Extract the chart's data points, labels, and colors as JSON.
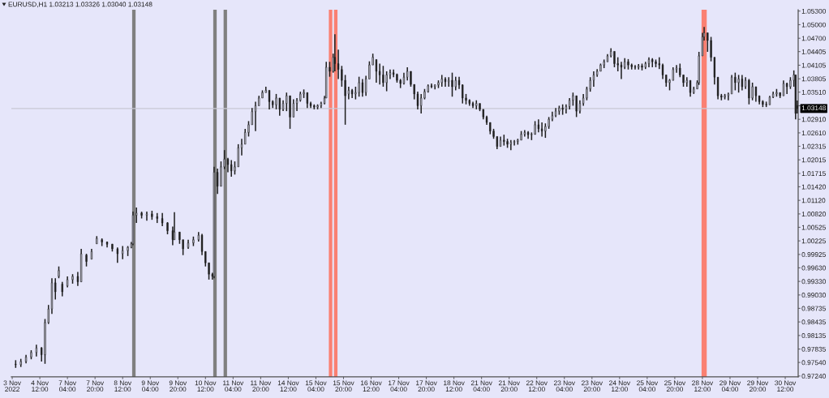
{
  "chart_data": {
    "type": "candlestick",
    "title": "EURUSD,H1 1.03213 1.03326 1.03040 1.03148",
    "color": "#202020",
    "categories": [
      "3 Nov 2022",
      null,
      null,
      null,
      null,
      null,
      null,
      null,
      null,
      null,
      null,
      null,
      null,
      null,
      null,
      null,
      "4 Nov 12:00",
      null,
      null,
      null,
      null,
      null,
      null,
      null,
      null,
      null,
      null,
      null,
      null,
      null,
      null,
      null,
      "7 Nov 04:00",
      null,
      null,
      null,
      null,
      null,
      null,
      null,
      null,
      null,
      null,
      null,
      null,
      null,
      null,
      null,
      "7 Nov 20:00",
      null,
      null,
      null,
      null,
      null,
      null,
      null,
      null,
      null,
      null,
      null,
      null,
      null,
      null,
      null,
      "8 Nov 12:00",
      null,
      null,
      null,
      null,
      null,
      null,
      null,
      null,
      null,
      null,
      null,
      null,
      null,
      null,
      null,
      "9 Nov 04:00",
      null,
      null,
      null,
      null,
      null,
      null,
      null,
      null,
      null,
      null,
      null,
      null,
      null,
      null,
      null,
      "9 Nov 20:00",
      null,
      null,
      null,
      null,
      null,
      null,
      null,
      null,
      null,
      null,
      null,
      null,
      null,
      null,
      null,
      "10 Nov 12:00",
      null,
      null,
      null,
      null,
      null,
      null,
      null,
      null,
      null,
      null,
      null,
      null,
      null,
      null,
      null,
      "11 Nov 04:00",
      null,
      null,
      null,
      null,
      null,
      null,
      null,
      null,
      null,
      null,
      null,
      null,
      null,
      null,
      null,
      "11 Nov 20:00",
      null,
      null,
      null,
      null,
      null,
      null,
      null,
      null,
      null,
      null,
      null,
      null,
      null,
      null,
      null,
      "14 Nov 12:00",
      null,
      null,
      null,
      null,
      null,
      null,
      null,
      null,
      null,
      null,
      null,
      null,
      null,
      null,
      null,
      "15 Nov 04:00",
      null,
      null,
      null,
      null,
      null,
      null,
      null,
      null,
      null,
      null,
      null,
      null,
      null,
      null,
      null,
      "15 Nov 20:00",
      null,
      null,
      null,
      null,
      null,
      null,
      null,
      null,
      null,
      null,
      null,
      null,
      null,
      null,
      null,
      "16 Nov 12:00",
      null,
      null,
      null,
      null,
      null,
      null,
      null,
      null,
      null,
      null,
      null,
      null,
      null,
      null,
      null,
      "17 Nov 04:00",
      null,
      null,
      null,
      null,
      null,
      null,
      null,
      null,
      null,
      null,
      null,
      null,
      null,
      null,
      null,
      "17 Nov 20:00",
      null,
      null,
      null,
      null,
      null,
      null,
      null,
      null,
      null,
      null,
      null,
      null,
      null,
      null,
      null,
      "18 Nov 12:00",
      null,
      null,
      null,
      null,
      null,
      null,
      null,
      null,
      null,
      null,
      null,
      null,
      null,
      null,
      null,
      "21 Nov 04:00",
      null,
      null,
      null,
      null,
      null,
      null,
      null,
      null,
      null,
      null,
      null,
      null,
      null,
      null,
      null,
      "21 Nov 20:00",
      null,
      null,
      null,
      null,
      null,
      null,
      null,
      null,
      null,
      null,
      null,
      null,
      null,
      null,
      null,
      "22 Nov 12:00",
      null,
      null,
      null,
      null,
      null,
      null,
      null,
      null,
      null,
      null,
      null,
      null,
      null,
      null,
      null,
      "23 Nov 04:00",
      null,
      null,
      null,
      null,
      null,
      null,
      null,
      null,
      null,
      null,
      null,
      null,
      null,
      null,
      null,
      "23 Nov 20:00",
      null,
      null,
      null,
      null,
      null,
      null,
      null,
      null,
      null,
      null,
      null,
      null,
      null,
      null,
      null,
      "24 Nov 12:00",
      null,
      null,
      null,
      null,
      null,
      null,
      null,
      null,
      null,
      null,
      null,
      null,
      null,
      null,
      null,
      "25 Nov 04:00",
      null,
      null,
      null,
      null,
      null,
      null,
      null,
      null,
      null,
      null,
      null,
      null,
      null,
      null,
      null,
      "25 Nov 20:00",
      null,
      null,
      null,
      null,
      null,
      null,
      null,
      null,
      null,
      null,
      null,
      null,
      null,
      null,
      null,
      "28 Nov 12:00",
      null,
      null,
      null,
      null,
      null,
      null,
      null,
      null,
      null,
      null,
      null,
      null,
      null,
      null,
      null,
      "29 Nov 04:00",
      null,
      null,
      null,
      null,
      null,
      null,
      null,
      null,
      null,
      null,
      null,
      null,
      null,
      null,
      null,
      "29 Nov 20:00",
      null,
      null,
      null,
      null,
      null,
      null,
      null,
      null,
      null,
      null,
      null,
      null,
      null,
      null,
      null,
      "30 Nov 12:00",
      null,
      null,
      null,
      null,
      null,
      null,
      null
    ],
    "ohlc": [
      null,
      null,
      [
        0.975,
        0.9759,
        0.9742,
        0.9749
      ],
      null,
      null,
      [
        0.9749,
        0.9762,
        0.9744,
        0.9756
      ],
      null,
      null,
      [
        0.9756,
        0.9771,
        0.9752,
        0.9766
      ],
      null,
      null,
      [
        0.9766,
        0.9781,
        0.9761,
        0.9776
      ],
      null,
      null,
      [
        0.9776,
        0.9793,
        0.9767,
        0.9786
      ],
      null,
      null,
      [
        0.9786,
        0.9788,
        0.9756,
        0.9771
      ],
      null,
      [
        0.9771,
        0.985,
        0.9751,
        0.9842
      ],
      null,
      [
        0.9842,
        0.9881,
        0.9839,
        0.9872
      ],
      null,
      [
        0.9872,
        0.994,
        0.9861,
        0.993
      ],
      null,
      [
        0.993,
        0.994,
        0.9893,
        0.991
      ],
      null,
      [
        0.9944,
        0.9966,
        0.994,
        0.9957
      ],
      null,
      [
        0.9927,
        0.9932,
        0.99,
        0.991
      ],
      null,
      null,
      [
        0.9923,
        0.9944,
        0.992,
        0.9937
      ],
      null,
      null,
      [
        0.9937,
        0.9949,
        0.9928,
        0.9944
      ],
      null,
      null,
      [
        0.9944,
        0.9954,
        0.9923,
        0.9932
      ],
      null,
      [
        0.9932,
        1.0005,
        0.9932,
        0.9994
      ],
      null,
      null,
      [
        0.9991,
        0.9994,
        0.9966,
        0.9977
      ],
      null,
      null,
      [
        0.9982,
        1.0005,
        0.9982,
        0.9999
      ],
      null,
      null,
      [
        1.0016,
        1.0033,
        1.0016,
        1.0028
      ],
      null,
      null,
      [
        1.0025,
        1.0028,
        1.0011,
        1.002
      ],
      null,
      null,
      [
        1.002,
        1.0021,
        1.0008,
        1.0015
      ],
      null,
      null,
      [
        1.0015,
        1.0016,
        0.9999,
        1.0005
      ],
      null,
      null,
      [
        1.0005,
        1.0008,
        0.9974,
        0.9994
      ],
      null,
      null,
      [
        0.9994,
        1.0011,
        0.9982,
        1.0001
      ],
      null,
      null,
      [
        1.0001,
        1.0011,
        0.9989,
        1.0008
      ],
      null,
      [
        1.0008,
        1.002,
        1.0006,
        1.0016
      ],
      [
        1.0016,
        1.0087,
        1.0013,
        1.0079
      ],
      null,
      [
        1.0079,
        1.0096,
        1.0062,
        1.0084
      ],
      null,
      null,
      [
        1.0084,
        1.0087,
        1.0072,
        1.0079
      ],
      null,
      null,
      [
        1.0079,
        1.0087,
        1.0067,
        1.0082
      ],
      null,
      null,
      [
        1.0082,
        1.0089,
        1.0069,
        1.0076
      ],
      null,
      null,
      [
        1.0076,
        1.0084,
        1.0062,
        1.0072
      ],
      null,
      null,
      [
        1.0072,
        1.0084,
        1.0055,
        1.0062
      ],
      null,
      null,
      [
        1.0062,
        1.0064,
        1.0037,
        1.0045
      ],
      null,
      null,
      [
        1.0045,
        1.0054,
        1.0013,
        1.0025
      ],
      [
        1.0025,
        1.0086,
        1.0025,
        1.0042
      ],
      null,
      null,
      [
        1.0042,
        1.0042,
        1.0016,
        1.0025
      ],
      null,
      [
        1.0025,
        1.0025,
        0.9991,
        1.0005
      ],
      null,
      null,
      [
        1.0008,
        1.0025,
        1.0005,
        1.0018
      ],
      null,
      null,
      [
        1.0018,
        1.0032,
        1.0011,
        1.0025
      ],
      null,
      null,
      [
        1.0025,
        1.0042,
        1.0021,
        1.0035
      ],
      null,
      [
        1.0035,
        1.0038,
        0.9991,
        0.9999
      ],
      null,
      [
        0.9999,
        0.9999,
        0.9966,
        0.9974
      ],
      null,
      [
        0.9974,
        0.9974,
        0.9937,
        0.9949
      ],
      null,
      [
        0.9949,
        0.9952,
        0.9937,
        0.9944
      ],
      [
        0.9944,
        1.0186,
        0.994,
        1.0174
      ],
      null,
      [
        1.0174,
        1.0182,
        1.0126,
        1.0143
      ],
      null,
      [
        1.0143,
        1.0198,
        1.0143,
        1.0186
      ],
      null,
      [
        1.0186,
        1.0223,
        1.0181,
        1.0203
      ],
      null,
      [
        1.0203,
        1.0206,
        1.0174,
        1.0191
      ],
      null,
      [
        1.0191,
        1.0201,
        1.0164,
        1.0177
      ],
      null,
      [
        1.0177,
        1.0198,
        1.0169,
        1.0186
      ],
      null,
      [
        1.0186,
        1.0236,
        1.0186,
        1.0228
      ],
      null,
      [
        1.0228,
        1.0248,
        1.0211,
        1.0236
      ],
      null,
      [
        1.0236,
        1.027,
        1.0236,
        1.0262
      ],
      null,
      [
        1.0262,
        1.0287,
        1.0253,
        1.0279
      ],
      null,
      [
        1.0279,
        1.0316,
        1.0279,
        1.0308
      ],
      null,
      [
        1.0308,
        1.033,
        1.0265,
        1.0321
      ],
      null,
      [
        1.0321,
        1.0343,
        1.0321,
        1.0338
      ],
      null,
      [
        1.0338,
        1.0355,
        1.0338,
        1.035
      ],
      null,
      [
        1.035,
        1.0363,
        1.035,
        1.0355
      ],
      null,
      [
        1.0355,
        1.0355,
        1.0313,
        1.033
      ],
      null,
      [
        1.033,
        1.0333,
        1.0316,
        1.0323
      ],
      null,
      [
        1.0323,
        1.0347,
        1.0313,
        1.0338
      ],
      null,
      [
        1.0338,
        1.0338,
        1.0299,
        1.0313
      ],
      null,
      [
        1.0313,
        1.0333,
        1.0309,
        1.0326
      ],
      null,
      [
        1.0326,
        1.035,
        1.0309,
        1.0343
      ],
      null,
      [
        1.0343,
        1.0343,
        1.027,
        1.0296
      ],
      null,
      [
        1.0296,
        1.0335,
        1.0296,
        1.0326
      ],
      null,
      [
        1.0326,
        1.0338,
        1.0309,
        1.0333
      ],
      null,
      [
        1.0333,
        1.0352,
        1.033,
        1.0347
      ],
      null,
      [
        1.0347,
        1.0357,
        1.0338,
        1.035
      ],
      null,
      [
        1.035,
        1.035,
        1.0316,
        1.0326
      ],
      null,
      [
        1.0326,
        1.033,
        1.0316,
        1.0321
      ],
      null,
      [
        1.0321,
        1.0324,
        1.0313,
        1.0318
      ],
      null,
      [
        1.0318,
        1.0324,
        1.0313,
        1.0321
      ],
      null,
      [
        1.0321,
        1.033,
        1.0316,
        1.0326
      ],
      null,
      [
        1.0326,
        1.0343,
        1.0324,
        1.0338
      ],
      [
        1.0338,
        1.0418,
        1.0338,
        1.0406
      ],
      null,
      [
        1.0406,
        1.0418,
        1.0385,
        1.0397
      ],
      null,
      [
        1.0397,
        1.0436,
        1.0394,
        1.0428
      ],
      [
        1.0428,
        1.0479,
        1.0397,
        1.0414
      ],
      null,
      [
        1.0414,
        1.0445,
        1.038,
        1.0401
      ],
      null,
      [
        1.0401,
        1.0409,
        1.0363,
        1.0377
      ],
      null,
      [
        1.0377,
        1.0389,
        1.0279,
        1.0343
      ],
      null,
      [
        1.0347,
        1.0363,
        1.0335,
        1.0355
      ],
      null,
      [
        1.0355,
        1.0358,
        1.0338,
        1.0347
      ],
      null,
      [
        1.0347,
        1.0363,
        1.0335,
        1.035
      ],
      null,
      [
        1.035,
        1.0385,
        1.0341,
        1.0372
      ],
      null,
      [
        1.0372,
        1.038,
        1.0341,
        1.035
      ],
      null,
      [
        1.035,
        1.0387,
        1.0343,
        1.038
      ],
      null,
      [
        1.038,
        1.0419,
        1.038,
        1.0411
      ],
      null,
      [
        1.0411,
        1.0436,
        1.0411,
        1.0428
      ],
      null,
      [
        1.0423,
        1.0423,
        1.0372,
        1.0397
      ],
      null,
      [
        1.0397,
        1.0414,
        1.0368,
        1.0389
      ],
      null,
      [
        1.0389,
        1.0409,
        1.0363,
        1.0372
      ],
      null,
      [
        1.0372,
        1.0397,
        1.0353,
        1.0389
      ],
      null,
      [
        1.0389,
        1.0401,
        1.038,
        1.0394
      ],
      null,
      [
        1.0394,
        1.0401,
        1.0384,
        1.039
      ],
      null,
      [
        1.039,
        1.0392,
        1.0372,
        1.0377
      ],
      null,
      [
        1.0377,
        1.038,
        1.036,
        1.037
      ],
      null,
      [
        1.037,
        1.0394,
        1.0368,
        1.0384
      ],
      null,
      [
        1.0384,
        1.0406,
        1.0377,
        1.0397
      ],
      null,
      [
        1.0397,
        1.0397,
        1.0363,
        1.0368
      ],
      null,
      [
        1.0368,
        1.0368,
        1.0335,
        1.0347
      ],
      null,
      [
        1.0347,
        1.0352,
        1.0313,
        1.0321
      ],
      null,
      [
        1.0321,
        1.0347,
        1.0304,
        1.0338
      ],
      null,
      [
        1.0338,
        1.0358,
        1.0335,
        1.0352
      ],
      null,
      [
        1.0352,
        1.0368,
        1.035,
        1.0365
      ],
      null,
      [
        1.0365,
        1.037,
        1.036,
        1.0363
      ],
      null,
      [
        1.0363,
        1.0368,
        1.0357,
        1.0367
      ],
      null,
      [
        1.0367,
        1.0377,
        1.036,
        1.0372
      ],
      null,
      [
        1.0372,
        1.0389,
        1.0363,
        1.038
      ],
      null,
      [
        1.038,
        1.0384,
        1.0363,
        1.0374
      ],
      null,
      [
        1.0374,
        1.0384,
        1.0363,
        1.0377
      ],
      null,
      [
        1.0377,
        1.0394,
        1.0341,
        1.0363
      ],
      null,
      [
        1.0363,
        1.0385,
        1.0355,
        1.0377
      ],
      null,
      [
        1.0377,
        1.0385,
        1.0358,
        1.0367
      ],
      null,
      [
        1.0367,
        1.0368,
        1.0326,
        1.0338
      ],
      null,
      [
        1.0338,
        1.0347,
        1.0324,
        1.0333
      ],
      null,
      [
        1.0333,
        1.0335,
        1.0321,
        1.0326
      ],
      null,
      [
        1.0326,
        1.033,
        1.0316,
        1.0321
      ],
      null,
      [
        1.0321,
        1.0333,
        1.0313,
        1.0326
      ],
      null,
      [
        1.0326,
        1.0326,
        1.0309,
        1.0313
      ],
      null,
      [
        1.0313,
        1.0313,
        1.0291,
        1.0296
      ],
      null,
      [
        1.0296,
        1.0299,
        1.0279,
        1.0284
      ],
      null,
      [
        1.0284,
        1.0284,
        1.0258,
        1.0265
      ],
      null,
      [
        1.0265,
        1.027,
        1.0248,
        1.0253
      ],
      null,
      [
        1.0253,
        1.0253,
        1.0225,
        1.0231
      ],
      null,
      [
        1.0231,
        1.0253,
        1.0231,
        1.0245
      ],
      null,
      [
        1.0245,
        1.0257,
        1.0233,
        1.0242
      ],
      null,
      [
        1.0242,
        1.0248,
        1.0228,
        1.0236
      ],
      null,
      [
        1.0236,
        1.0245,
        1.0223,
        1.024
      ],
      null,
      [
        1.024,
        1.0245,
        1.0233,
        1.0242
      ],
      null,
      [
        1.0242,
        1.0248,
        1.0235,
        1.0245
      ],
      null,
      [
        1.0245,
        1.0265,
        1.0245,
        1.0258
      ],
      null,
      [
        1.0258,
        1.0267,
        1.0253,
        1.0262
      ],
      null,
      [
        1.0262,
        1.0265,
        1.0248,
        1.0257
      ],
      null,
      [
        1.0257,
        1.0262,
        1.0245,
        1.0258
      ],
      null,
      [
        1.0258,
        1.0287,
        1.0257,
        1.0279
      ],
      null,
      [
        1.0279,
        1.0291,
        1.0262,
        1.027
      ],
      null,
      [
        1.027,
        1.0284,
        1.0253,
        1.0265
      ],
      null,
      [
        1.0265,
        1.0282,
        1.025,
        1.0275
      ],
      null,
      [
        1.0275,
        1.0296,
        1.027,
        1.0291
      ],
      null,
      [
        1.0291,
        1.0308,
        1.0287,
        1.0299
      ],
      null,
      [
        1.0299,
        1.0316,
        1.0296,
        1.0309
      ],
      null,
      [
        1.0309,
        1.0321,
        1.0301,
        1.0316
      ],
      null,
      [
        1.0316,
        1.0324,
        1.0301,
        1.0313
      ],
      null,
      [
        1.0313,
        1.0324,
        1.0304,
        1.0319
      ],
      null,
      [
        1.0319,
        1.0338,
        1.0313,
        1.0333
      ],
      null,
      [
        1.0333,
        1.035,
        1.0321,
        1.0343
      ],
      null,
      [
        1.0343,
        1.0343,
        1.0296,
        1.0309
      ],
      null,
      [
        1.0309,
        1.0333,
        1.0304,
        1.0326
      ],
      null,
      [
        1.0326,
        1.0347,
        1.0321,
        1.0338
      ],
      null,
      [
        1.0338,
        1.0363,
        1.0333,
        1.0358
      ],
      null,
      [
        1.0358,
        1.0384,
        1.0352,
        1.0377
      ],
      null,
      [
        1.0377,
        1.0397,
        1.0363,
        1.0389
      ],
      null,
      [
        1.0389,
        1.0402,
        1.0385,
        1.0397
      ],
      null,
      [
        1.0397,
        1.0414,
        1.0397,
        1.0411
      ],
      null,
      [
        1.0411,
        1.0423,
        1.0404,
        1.0418
      ],
      null,
      [
        1.0418,
        1.0435,
        1.0418,
        1.0431
      ],
      null,
      [
        1.0431,
        1.0448,
        1.0428,
        1.0441
      ],
      null,
      [
        1.0441,
        1.0441,
        1.0406,
        1.0414
      ],
      null,
      [
        1.0414,
        1.0428,
        1.0397,
        1.0411
      ],
      null,
      [
        1.0411,
        1.0418,
        1.038,
        1.0406
      ],
      null,
      [
        1.0406,
        1.0426,
        1.0402,
        1.0418
      ],
      null,
      [
        1.0418,
        1.0424,
        1.0401,
        1.0411
      ],
      null,
      [
        1.0411,
        1.0414,
        1.0401,
        1.0407
      ],
      null,
      [
        1.0407,
        1.0411,
        1.0401,
        1.0406
      ],
      null,
      [
        1.0406,
        1.0413,
        1.0401,
        1.0409
      ],
      null,
      [
        1.0409,
        1.0414,
        1.0399,
        1.0406
      ],
      null,
      [
        1.0406,
        1.0418,
        1.0402,
        1.0414
      ],
      null,
      [
        1.0414,
        1.0428,
        1.0406,
        1.0423
      ],
      null,
      [
        1.0423,
        1.0426,
        1.0406,
        1.0418
      ],
      null,
      [
        1.0418,
        1.0423,
        1.0406,
        1.0414
      ],
      null,
      [
        1.0414,
        1.0428,
        1.0402,
        1.0411
      ],
      null,
      [
        1.0411,
        1.0414,
        1.038,
        1.0389
      ],
      null,
      [
        1.0389,
        1.0389,
        1.0363,
        1.0372
      ],
      null,
      [
        1.0372,
        1.038,
        1.0355,
        1.0377
      ],
      null,
      [
        1.0377,
        1.0406,
        1.0377,
        1.0401
      ],
      null,
      [
        1.0401,
        1.0411,
        1.0394,
        1.0404
      ],
      null,
      [
        1.0404,
        1.0414,
        1.0384,
        1.0389
      ],
      null,
      [
        1.0389,
        1.0389,
        1.0363,
        1.0372
      ],
      null,
      [
        1.0372,
        1.0384,
        1.0363,
        1.0377
      ],
      null,
      [
        1.0377,
        1.0377,
        1.0341,
        1.035
      ],
      null,
      [
        1.035,
        1.0363,
        1.0347,
        1.0358
      ],
      null,
      [
        1.0358,
        1.0377,
        1.0358,
        1.0372
      ],
      [
        1.0372,
        1.044,
        1.0367,
        1.0431
      ],
      null,
      [
        1.0431,
        1.0482,
        1.0431,
        1.0473
      ],
      [
        1.0473,
        1.0495,
        1.0465,
        1.0482
      ],
      null,
      [
        1.0482,
        1.0482,
        1.044,
        1.0465
      ],
      null,
      [
        1.0465,
        1.0473,
        1.0419,
        1.0428
      ],
      null,
      [
        1.0428,
        1.0428,
        1.0368,
        1.0384
      ],
      null,
      [
        1.0384,
        1.0384,
        1.0335,
        1.0343
      ],
      null,
      [
        1.0343,
        1.0347,
        1.0333,
        1.034
      ],
      null,
      [
        1.034,
        1.0347,
        1.0335,
        1.0343
      ],
      null,
      [
        1.0343,
        1.035,
        1.0333,
        1.0347
      ],
      null,
      [
        1.0347,
        1.0389,
        1.0347,
        1.0384
      ],
      null,
      [
        1.0384,
        1.0394,
        1.0355,
        1.0372
      ],
      null,
      [
        1.0372,
        1.0389,
        1.035,
        1.038
      ],
      null,
      [
        1.038,
        1.0389,
        1.0355,
        1.0363
      ],
      null,
      [
        1.0363,
        1.0384,
        1.0358,
        1.0377
      ],
      null,
      [
        1.0377,
        1.038,
        1.0324,
        1.0338
      ],
      null,
      [
        1.0338,
        1.0372,
        1.0333,
        1.0363
      ],
      null,
      [
        1.0363,
        1.0363,
        1.033,
        1.0343
      ],
      null,
      [
        1.0343,
        1.0343,
        1.0324,
        1.033
      ],
      null,
      [
        1.033,
        1.0333,
        1.0318,
        1.0324
      ],
      null,
      [
        1.0324,
        1.033,
        1.0318,
        1.0323
      ],
      null,
      [
        1.0323,
        1.0343,
        1.0323,
        1.034
      ],
      null,
      [
        1.034,
        1.0352,
        1.0338,
        1.0347
      ],
      null,
      [
        1.0347,
        1.0358,
        1.0341,
        1.035
      ],
      null,
      [
        1.035,
        1.035,
        1.0338,
        1.0343
      ],
      null,
      [
        1.0343,
        1.0377,
        1.0343,
        1.037
      ],
      null,
      [
        1.037,
        1.0372,
        1.0347,
        1.0363
      ],
      null,
      [
        1.0363,
        1.0384,
        1.0358,
        1.0377
      ],
      null,
      [
        1.0377,
        1.0399,
        1.0363,
        1.0389
      ],
      [
        1.0389,
        1.0389,
        1.0291,
        1.0304
      ],
      [
        1.03213,
        1.03326,
        1.0304,
        1.03148
      ]
    ],
    "ylim": [
      0.9722,
      1.0533
    ],
    "yticks": [
      {
        "value": 0.9724,
        "label": "0.97240"
      },
      {
        "value": 0.9754,
        "label": "0.97540"
      },
      {
        "value": 0.97835,
        "label": "0.97835"
      },
      {
        "value": 0.98135,
        "label": "0.98135"
      },
      {
        "value": 0.98435,
        "label": "0.98435"
      },
      {
        "value": 0.98735,
        "label": "0.98735"
      },
      {
        "value": 0.9903,
        "label": "0.99030"
      },
      {
        "value": 0.9933,
        "label": "0.99330"
      },
      {
        "value": 0.9963,
        "label": "0.99630"
      },
      {
        "value": 0.99925,
        "label": "0.99925"
      },
      {
        "value": 1.00225,
        "label": "1.00225"
      },
      {
        "value": 1.00525,
        "label": "1.00525"
      },
      {
        "value": 1.0082,
        "label": "1.00820"
      },
      {
        "value": 1.0112,
        "label": "1.01120"
      },
      {
        "value": 1.0142,
        "label": "1.01420"
      },
      {
        "value": 1.01715,
        "label": "1.01715"
      },
      {
        "value": 1.02015,
        "label": "1.02015"
      },
      {
        "value": 1.02315,
        "label": "1.02315"
      },
      {
        "value": 1.0261,
        "label": "1.02610"
      },
      {
        "value": 1.0291,
        "label": "1.02910"
      },
      {
        "value": 1.0321,
        "label": null
      },
      {
        "value": 1.0351,
        "label": "1.03510"
      },
      {
        "value": 1.03805,
        "label": "1.03805"
      },
      {
        "value": 1.04105,
        "label": "1.04105"
      },
      {
        "value": 1.04405,
        "label": "1.04405"
      },
      {
        "value": 1.047,
        "label": "1.04700"
      },
      {
        "value": 1.05,
        "label": "1.05000"
      },
      {
        "value": 1.053,
        "label": "1.05300"
      }
    ],
    "ref_lines": [
      {
        "axis": "y",
        "value": 1.03148,
        "label": "1.03148",
        "color": "#c8c8d4"
      }
    ]
  }
}
